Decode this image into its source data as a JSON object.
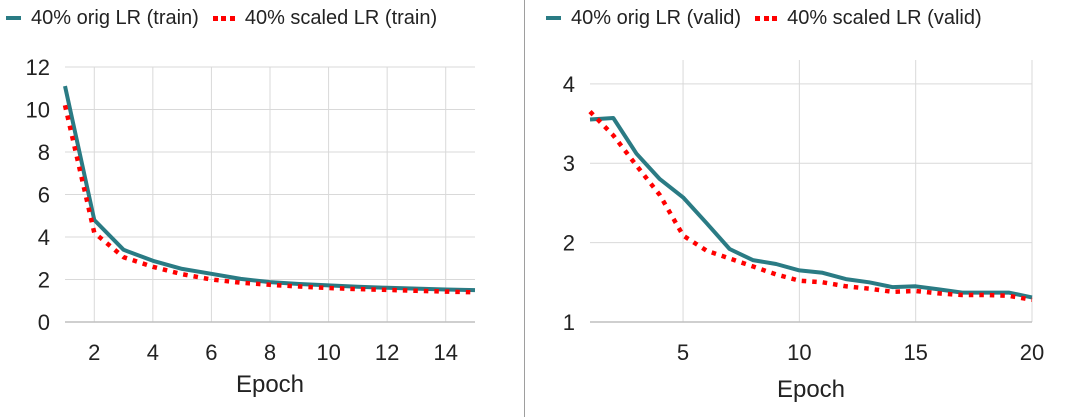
{
  "colors": {
    "orig": "#2a7b84",
    "scaled": "#ff0000",
    "grid": "#d9d9d9",
    "axis": "#bfbfbf"
  },
  "chart_data": [
    {
      "type": "line",
      "title": "",
      "xlabel": "Epoch",
      "ylabel": "",
      "xlim": [
        1,
        15
      ],
      "ylim": [
        0,
        12
      ],
      "xticks": [
        2,
        4,
        6,
        8,
        10,
        12,
        14
      ],
      "yticks": [
        0,
        2,
        4,
        6,
        8,
        10,
        12
      ],
      "grid": true,
      "legend": "top",
      "x": [
        1,
        2,
        3,
        4,
        5,
        6,
        7,
        8,
        9,
        10,
        11,
        12,
        13,
        14,
        15
      ],
      "series": [
        {
          "name": "40% orig LR (train)",
          "style": "solid",
          "values": [
            11.1,
            4.8,
            3.4,
            2.88,
            2.5,
            2.27,
            2.03,
            1.88,
            1.79,
            1.72,
            1.66,
            1.61,
            1.57,
            1.53,
            1.5
          ]
        },
        {
          "name": "40% scaled LR (train)",
          "style": "dotted",
          "values": [
            10.2,
            4.2,
            3.05,
            2.6,
            2.25,
            2.0,
            1.85,
            1.75,
            1.67,
            1.6,
            1.55,
            1.51,
            1.47,
            1.43,
            1.4
          ]
        }
      ]
    },
    {
      "type": "line",
      "title": "",
      "xlabel": "Epoch",
      "ylabel": "",
      "xlim": [
        1,
        20
      ],
      "ylim": [
        1,
        4.3
      ],
      "xticks": [
        5,
        10,
        15,
        20
      ],
      "yticks": [
        1,
        2,
        3,
        4
      ],
      "grid": true,
      "legend": "top",
      "x": [
        1,
        2,
        3,
        4,
        5,
        6,
        7,
        8,
        9,
        10,
        11,
        12,
        13,
        14,
        15,
        16,
        17,
        18,
        19,
        20
      ],
      "series": [
        {
          "name": "40% orig LR (valid)",
          "style": "solid",
          "values": [
            3.55,
            3.57,
            3.12,
            2.8,
            2.57,
            2.25,
            1.92,
            1.78,
            1.73,
            1.65,
            1.62,
            1.54,
            1.5,
            1.44,
            1.45,
            1.41,
            1.37,
            1.37,
            1.37,
            1.31
          ]
        },
        {
          "name": "40% scaled LR (valid)",
          "style": "dotted",
          "values": [
            3.65,
            3.35,
            2.97,
            2.6,
            2.09,
            1.9,
            1.8,
            1.7,
            1.6,
            1.52,
            1.5,
            1.45,
            1.42,
            1.38,
            1.39,
            1.36,
            1.34,
            1.34,
            1.33,
            1.28
          ]
        }
      ]
    }
  ]
}
